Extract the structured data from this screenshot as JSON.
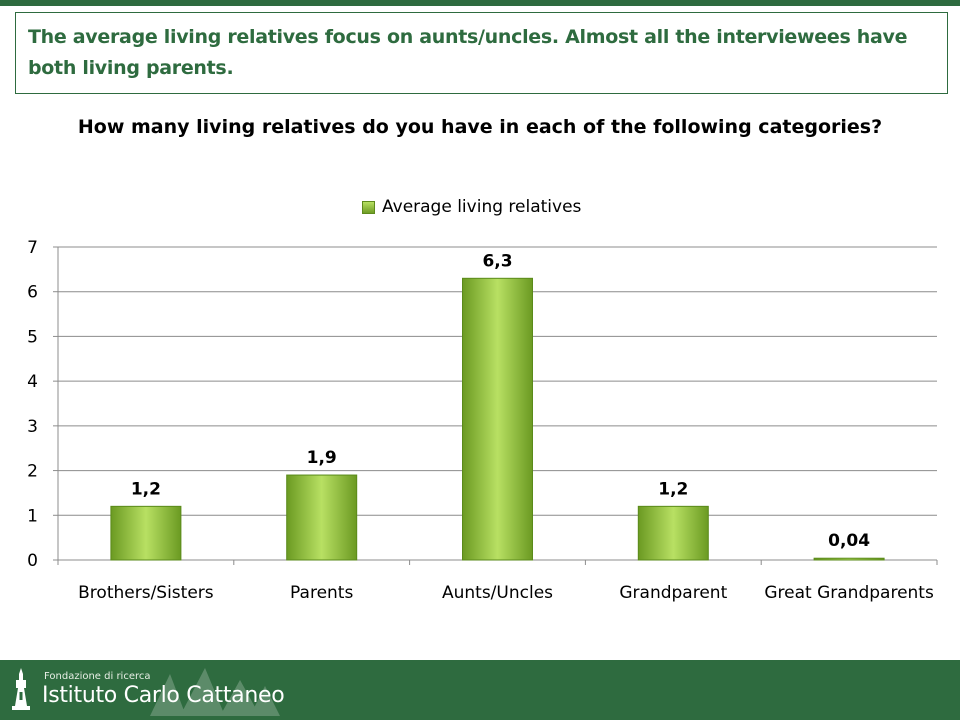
{
  "header": {
    "text": "The average living relatives focus on aunts/uncles. Almost all the interviewees have both living parents."
  },
  "chart_data": {
    "type": "bar",
    "title": "How many living relatives do you have in each of the following categories?",
    "categories": [
      "Brothers/Sisters",
      "Parents",
      "Aunts/Uncles",
      "Grandparent",
      "Great Grandparents"
    ],
    "series": [
      {
        "name": "Average living relatives",
        "values": [
          1.2,
          1.9,
          6.3,
          1.2,
          0.04
        ],
        "labels": [
          "1,2",
          "1,9",
          "6,3",
          "1,2",
          "0,04"
        ]
      }
    ],
    "ylim": [
      0,
      7
    ],
    "yticks": [
      0,
      1,
      2,
      3,
      4,
      5,
      6,
      7
    ],
    "grid": true,
    "legend": "top",
    "colors": {
      "bar_light": "#b8e063",
      "bar_dark": "#6b9a22",
      "bar_edge": "#5a8a1a"
    }
  },
  "footer": {
    "small_text": "Fondazione di ricerca",
    "big_text": "Istituto Carlo Cattaneo",
    "logo_icon": "tower-icon",
    "background": "#2e6b3f"
  }
}
